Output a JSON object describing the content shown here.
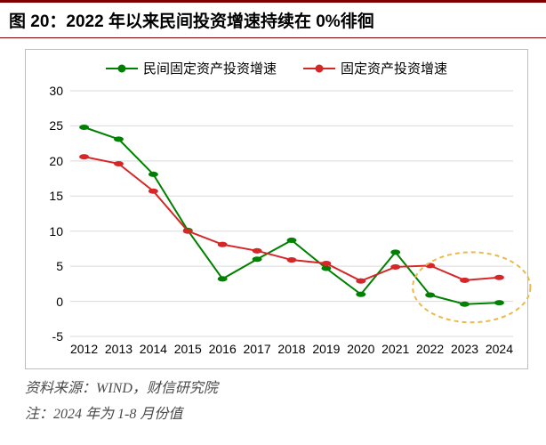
{
  "title": "图 20：2022 年以来民间投资增速持续在 0%徘徊",
  "source_line": "资料来源：WIND，财信研究院",
  "note_line": "注：2024 年为 1-8 月份值",
  "chart": {
    "type": "line",
    "background_color": "#ffffff",
    "border_color": "#bdbdbd",
    "grid_color": "#d9d9d9",
    "title_fontsize": 19,
    "label_fontsize": 14,
    "legend_fontsize": 15,
    "line_width": 2,
    "marker_size": 5.5,
    "x": [
      2012,
      2013,
      2014,
      2015,
      2016,
      2017,
      2018,
      2019,
      2020,
      2021,
      2022,
      2023,
      2024
    ],
    "ylim": [
      -5,
      30
    ],
    "ytick_step": 5,
    "xlim_pad": 0.4,
    "series": [
      {
        "name": "民间固定资产投资增速",
        "color": "#008000",
        "values": [
          24.8,
          23.1,
          18.1,
          10.1,
          3.2,
          6.0,
          8.7,
          4.7,
          1.0,
          7.0,
          0.9,
          -0.4,
          -0.2
        ]
      },
      {
        "name": "固定资产投资增速",
        "color": "#d62728",
        "values": [
          20.6,
          19.6,
          15.7,
          10.0,
          8.1,
          7.2,
          5.9,
          5.4,
          2.9,
          4.9,
          5.1,
          3.0,
          3.4
        ]
      }
    ],
    "highlight_ellipse": {
      "x_center": 2023.2,
      "y_center": 2.0,
      "rx_years": 1.7,
      "ry_units": 5.0,
      "stroke": "#e9b94a",
      "dash": "5 4",
      "stroke_width": 2
    }
  }
}
